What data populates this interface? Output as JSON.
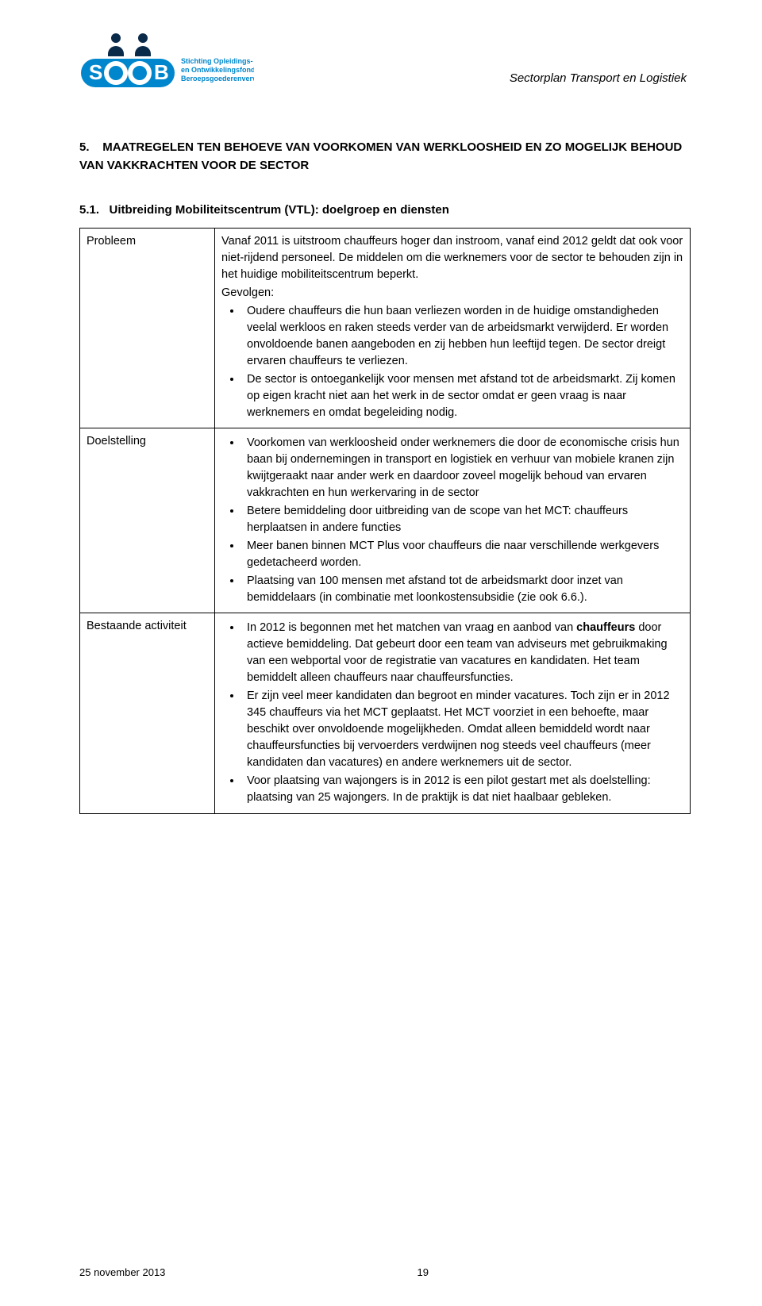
{
  "header": {
    "logo_line1": "Stichting Opleidings-",
    "logo_line2": "en Ontwikkelingsfonds",
    "logo_line3": "Beroepsgoederenvervoer",
    "doc_title": "Sectorplan Transport en Logistiek"
  },
  "section": {
    "number": "5.",
    "title_line": "MAATREGELEN TEN BEHOEVE VAN VOORKOMEN VAN WERKLOOSHEID EN ZO MOGELIJK BEHOUD VAN VAKKRACHTEN VOOR DE SECTOR"
  },
  "subsection": {
    "number": "5.1.",
    "title": "Uitbreiding Mobiliteitscentrum (VTL): doelgroep en diensten"
  },
  "rows": {
    "probleem": {
      "label": "Probleem",
      "intro": "Vanaf 2011 is uitstroom chauffeurs hoger dan instroom, vanaf eind 2012 geldt dat ook voor niet-rijdend personeel. De middelen om die werknemers voor de sector te behouden zijn in het huidige mobiliteitscentrum beperkt.",
      "gevolgen_label": "Gevolgen:",
      "bullets": [
        "Oudere chauffeurs die hun baan verliezen worden in de huidige omstandigheden veelal werkloos en raken steeds verder van de arbeidsmarkt verwijderd. Er worden onvoldoende banen aangeboden en zij hebben hun leeftijd tegen. De sector dreigt ervaren chauffeurs te verliezen.",
        "De sector is ontoegankelijk voor mensen met afstand tot de arbeidsmarkt. Zij komen op eigen kracht niet aan het werk in de sector omdat er geen vraag is naar werknemers en omdat begeleiding nodig."
      ]
    },
    "doelstelling": {
      "label": "Doelstelling",
      "bullets": [
        "Voorkomen van werkloosheid onder werknemers die door de economische crisis hun baan bij ondernemingen in transport en logistiek en verhuur van mobiele kranen zijn kwijtgeraakt naar ander werk en daardoor zoveel mogelijk behoud van ervaren vakkrachten en hun werkervaring in de sector",
        "Betere bemiddeling door uitbreiding van de scope van het MCT: chauffeurs herplaatsen in andere functies",
        "Meer banen binnen MCT Plus voor chauffeurs die naar verschillende werkgevers gedetacheerd worden.",
        "Plaatsing van 100 mensen met afstand tot de arbeidsmarkt door inzet van bemiddelaars (in combinatie met loonkostensubsidie (zie ook 6.6.)."
      ]
    },
    "bestaande": {
      "label": "Bestaande activiteit",
      "bullets_html": [
        "In 2012 is begonnen met het matchen van vraag en aanbod van <b>chauffeurs</b> door actieve bemiddeling. Dat gebeurt door een team van adviseurs met gebruikmaking van een webportal voor de registratie van vacatures en kandidaten. Het team bemiddelt alleen chauffeurs naar chauffeursfuncties.",
        "Er zijn veel meer kandidaten dan begroot en minder vacatures. Toch zijn er in 2012 345 chauffeurs via het MCT geplaatst. Het MCT voorziet in een behoefte, maar beschikt over onvoldoende mogelijkheden. Omdat alleen bemiddeld wordt naar chauffeursfuncties bij vervoerders verdwijnen nog steeds veel chauffeurs (meer kandidaten dan vacatures) en andere werknemers uit de sector.",
        "Voor plaatsing van wajongers is in 2012 is een pilot gestart met als doelstelling: plaatsing van 25 wajongers. In de praktijk is dat niet haalbaar gebleken."
      ]
    }
  },
  "footer": {
    "date": "25 november 2013",
    "page": "19"
  },
  "colors": {
    "brand_blue": "#0086cc",
    "brand_dark": "#0a2a4a",
    "text": "#000000",
    "bg": "#ffffff"
  }
}
